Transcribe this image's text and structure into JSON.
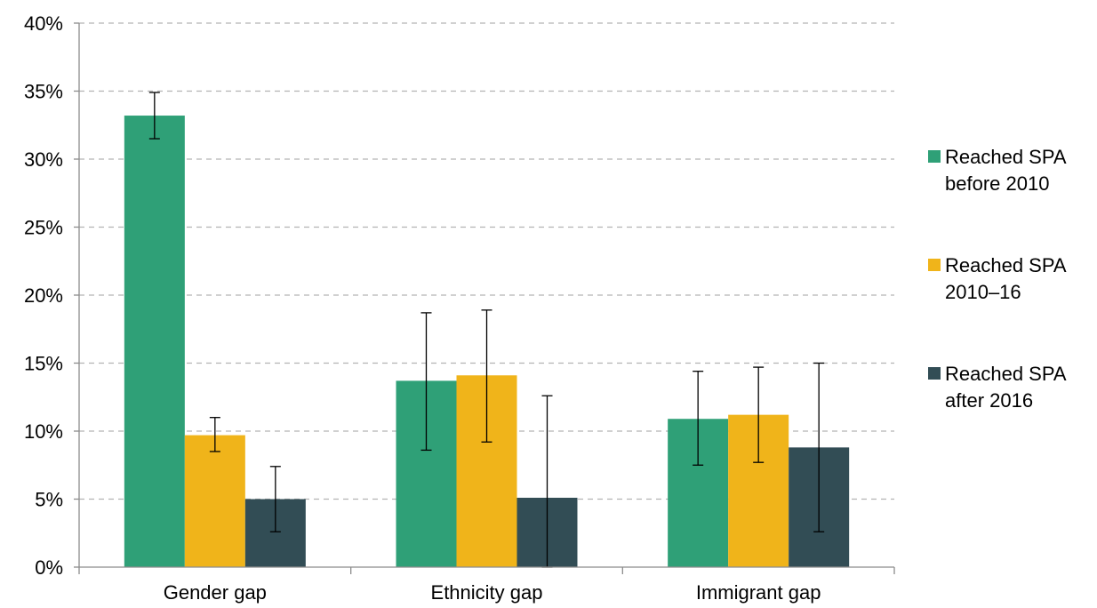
{
  "chart_data": {
    "type": "bar",
    "categories": [
      "Gender gap",
      "Ethnicity gap",
      "Immigrant gap"
    ],
    "series": [
      {
        "name": "Reached SPA before 2010",
        "legend_lines": [
          "Reached SPA",
          "before 2010"
        ],
        "color": "#2fa077",
        "values": [
          33.2,
          13.7,
          10.9
        ],
        "error_low": [
          31.5,
          8.6,
          7.5
        ],
        "error_high": [
          34.9,
          18.7,
          14.4
        ]
      },
      {
        "name": "Reached SPA 2010–16",
        "legend_lines": [
          "Reached SPA",
          "2010–16"
        ],
        "color": "#f0b41a",
        "values": [
          9.7,
          14.1,
          11.2
        ],
        "error_low": [
          8.5,
          9.2,
          7.7
        ],
        "error_high": [
          11.0,
          18.9,
          14.7
        ]
      },
      {
        "name": "Reached SPA after 2016",
        "legend_lines": [
          "Reached SPA",
          "after 2016"
        ],
        "color": "#324d55",
        "values": [
          5.0,
          5.1,
          8.8
        ],
        "error_low": [
          2.6,
          0.0,
          2.6
        ],
        "error_high": [
          7.4,
          12.6,
          15.0
        ]
      }
    ],
    "ylim": [
      0,
      40
    ],
    "y_ticks": [
      0,
      5,
      10,
      15,
      20,
      25,
      30,
      35,
      40
    ],
    "y_tick_labels": [
      "0%",
      "5%",
      "10%",
      "15%",
      "20%",
      "25%",
      "30%",
      "35%",
      "40%"
    ],
    "title": "",
    "xlabel": "",
    "ylabel": "",
    "grid": true,
    "legend_position": "right"
  }
}
